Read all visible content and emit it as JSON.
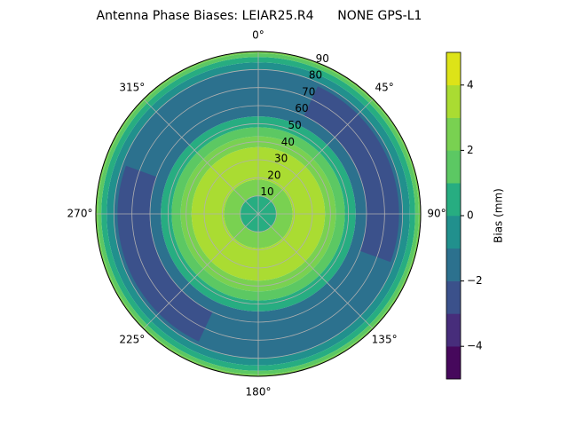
{
  "chart_data": {
    "type": "polar_contour",
    "title": "Antenna Phase Biases: LEIAR25.R4      NONE GPS-L1",
    "rlim": [
      0,
      90
    ],
    "rticks": [
      10,
      20,
      30,
      40,
      50,
      60,
      70,
      80,
      90
    ],
    "azimuth_ticks": [
      {
        "value": 0,
        "label": "0°"
      },
      {
        "value": 45,
        "label": "45°"
      },
      {
        "value": 90,
        "label": "90°"
      },
      {
        "value": 135,
        "label": "135°"
      },
      {
        "value": 180,
        "label": "180°"
      },
      {
        "value": 225,
        "label": "225°"
      },
      {
        "value": 270,
        "label": "270°"
      },
      {
        "value": 315,
        "label": "315°"
      }
    ],
    "grid": true,
    "bands": {
      "r": [
        0,
        10,
        19,
        37,
        43,
        48,
        54,
        80,
        84,
        87,
        89,
        90
      ],
      "values": [
        0.5,
        2.5,
        3.5,
        2.5,
        1.5,
        0.5,
        -1.5,
        -0.5,
        0.5,
        1.5,
        2.5
      ]
    },
    "patches": [
      {
        "azimuth": [
          25,
          110
        ],
        "r": [
          60,
          78
        ],
        "value": -2.5
      },
      {
        "azimuth": [
          205,
          290
        ],
        "r": [
          60,
          78
        ],
        "value": -2.5
      }
    ],
    "colorbar": {
      "label": "Bias (mm)",
      "levels": [
        -5,
        -4,
        -3,
        -2,
        -1,
        0,
        1,
        2,
        3,
        4,
        5
      ],
      "colors": [
        "#46085c",
        "#472d7b",
        "#3b518b",
        "#2c718e",
        "#21908d",
        "#27ad81",
        "#5cc863",
        "#79d151",
        "#aadc32",
        "#dde318"
      ],
      "ticks": [
        {
          "value": -4,
          "label": "−4"
        },
        {
          "value": -2,
          "label": "−2"
        },
        0,
        2,
        4
      ]
    }
  }
}
